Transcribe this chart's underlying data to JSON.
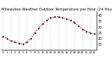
{
  "title": "Milwaukee Weather Outdoor Temperature per Hour (24 Hours)",
  "hours": [
    0,
    1,
    2,
    3,
    4,
    5,
    6,
    7,
    8,
    9,
    10,
    11,
    12,
    13,
    14,
    15,
    16,
    17,
    18,
    19,
    20,
    21,
    22,
    23
  ],
  "temps": [
    22,
    20,
    18,
    17,
    16,
    15,
    17,
    20,
    25,
    29,
    33,
    36,
    38,
    39,
    39,
    38,
    37,
    36,
    34,
    31,
    28,
    26,
    25,
    24
  ],
  "line_color": "#cc0000",
  "dot_color": "#000000",
  "bg_color": "#ffffff",
  "grid_color": "#999999",
  "tick_label_color": "#000000",
  "ylim": [
    10,
    44
  ],
  "yticks": [
    15,
    20,
    25,
    30,
    35,
    40
  ],
  "ylabel_fontsize": 3.5,
  "xlabel_fontsize": 3.0,
  "title_fontsize": 3.8,
  "xtick_positions": [
    0,
    1,
    2,
    3,
    4,
    5,
    6,
    7,
    8,
    9,
    10,
    11,
    12,
    13,
    14,
    15,
    16,
    17,
    18,
    19,
    20,
    21,
    22,
    23
  ],
  "vgrid_positions": [
    0,
    2,
    4,
    6,
    8,
    10,
    12,
    14,
    16,
    18,
    20,
    22
  ]
}
